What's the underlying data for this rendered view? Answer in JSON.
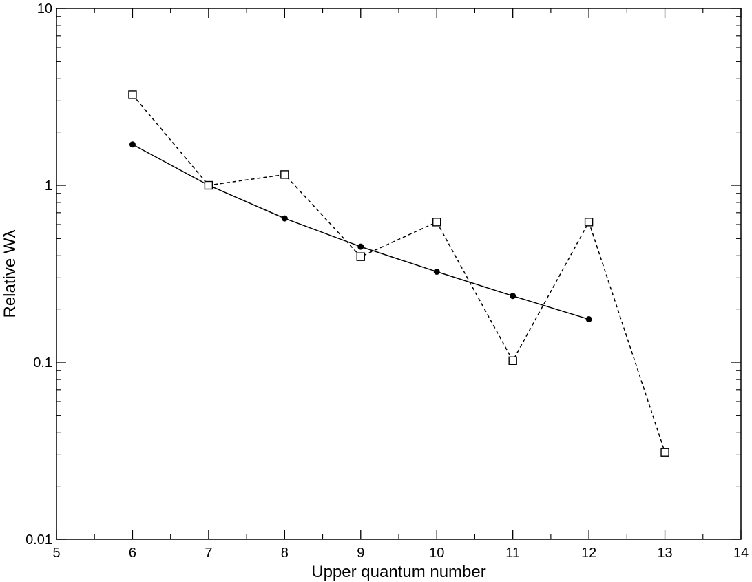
{
  "chart_data": {
    "type": "line",
    "xlabel": "Upper quantum number",
    "ylabel": "Relative Wλ",
    "xlim": [
      5,
      14
    ],
    "ylim": [
      0.01,
      10
    ],
    "yscale": "log",
    "grid": false,
    "legend": "none",
    "x_ticks": [
      "5",
      "6",
      "7",
      "8",
      "9",
      "10",
      "11",
      "12",
      "13",
      "14"
    ],
    "y_ticks": [
      "0.01",
      "0.1",
      "1",
      "10"
    ],
    "series": [
      {
        "marker": "filled-circle",
        "line": "solid",
        "x": [
          6,
          7,
          8,
          9,
          10,
          11,
          12
        ],
        "y": [
          1.7,
          1.0,
          0.65,
          0.45,
          0.325,
          0.237,
          0.175
        ]
      },
      {
        "marker": "open-square",
        "line": "dashed",
        "x": [
          6,
          7,
          8,
          9,
          10,
          11,
          12,
          13
        ],
        "y": [
          3.25,
          1.0,
          1.15,
          0.395,
          0.62,
          0.102,
          0.62,
          0.031
        ]
      }
    ]
  }
}
